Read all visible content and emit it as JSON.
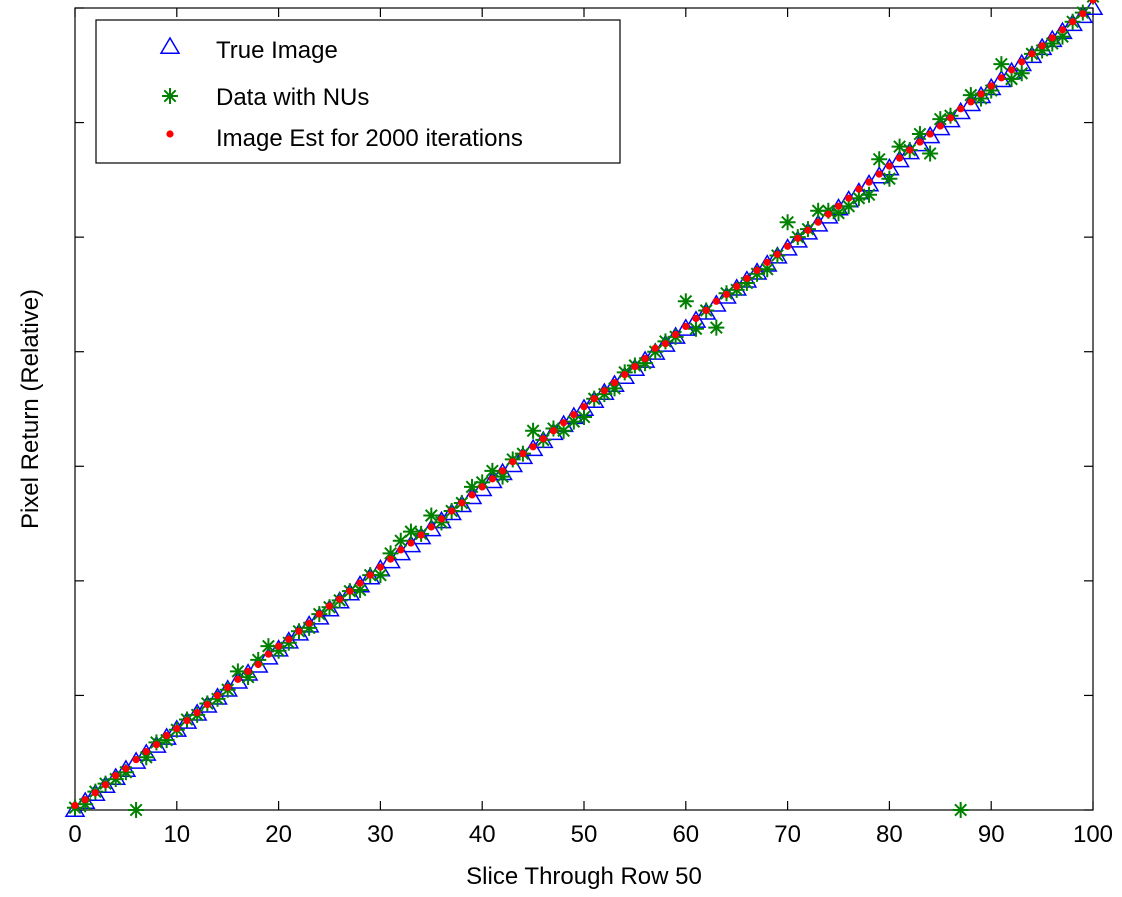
{
  "chart_data": {
    "type": "scatter",
    "xlabel": "Slice Through Row 50",
    "ylabel": "Pixel Return (Relative)",
    "xlim": [
      0,
      100
    ],
    "ylim": [
      0,
      7
    ],
    "xticks": [
      0,
      10,
      20,
      30,
      40,
      50,
      60,
      70,
      80,
      90,
      100
    ],
    "xtick_labels": [
      "0",
      "10",
      "20",
      "30",
      "40",
      "50",
      "60",
      "70",
      "80",
      "90",
      "100"
    ],
    "yticks": [
      0,
      1,
      2,
      3,
      4,
      5,
      6,
      7
    ],
    "ytick_labels": [
      "",
      "",
      "",
      "",
      "",
      "",
      "",
      ""
    ],
    "grid": false,
    "legend_position": "top-left",
    "series": [
      {
        "name": "True Image",
        "marker": "triangle",
        "color": "#0000ff",
        "x": [
          0,
          1,
          2,
          3,
          4,
          5,
          6,
          7,
          8,
          9,
          10,
          11,
          12,
          13,
          14,
          15,
          16,
          17,
          18,
          19,
          20,
          21,
          22,
          23,
          24,
          25,
          26,
          27,
          28,
          29,
          30,
          31,
          32,
          33,
          34,
          35,
          36,
          37,
          38,
          39,
          40,
          41,
          42,
          43,
          44,
          45,
          46,
          47,
          48,
          49,
          50,
          51,
          52,
          53,
          54,
          55,
          56,
          57,
          58,
          59,
          60,
          61,
          62,
          63,
          64,
          65,
          66,
          67,
          68,
          69,
          70,
          71,
          72,
          73,
          74,
          75,
          76,
          77,
          78,
          79,
          80,
          81,
          82,
          83,
          84,
          85,
          86,
          87,
          88,
          89,
          90,
          91,
          92,
          93,
          94,
          95,
          96,
          97,
          98,
          99,
          100
        ],
        "y": [
          0.0,
          0.07,
          0.14,
          0.21,
          0.28,
          0.35,
          0.42,
          0.49,
          0.56,
          0.63,
          0.7,
          0.77,
          0.84,
          0.91,
          0.98,
          1.05,
          1.12,
          1.19,
          1.26,
          1.33,
          1.4,
          1.47,
          1.54,
          1.61,
          1.68,
          1.75,
          1.82,
          1.89,
          1.96,
          2.03,
          2.1,
          2.17,
          2.24,
          2.31,
          2.38,
          2.45,
          2.52,
          2.59,
          2.66,
          2.73,
          2.8,
          2.87,
          2.94,
          3.01,
          3.08,
          3.15,
          3.22,
          3.29,
          3.36,
          3.43,
          3.5,
          3.57,
          3.64,
          3.71,
          3.78,
          3.85,
          3.92,
          3.99,
          4.06,
          4.13,
          4.2,
          4.27,
          4.34,
          4.41,
          4.48,
          4.55,
          4.62,
          4.69,
          4.76,
          4.83,
          4.9,
          4.97,
          5.04,
          5.11,
          5.18,
          5.25,
          5.32,
          5.39,
          5.46,
          5.53,
          5.6,
          5.67,
          5.74,
          5.81,
          5.88,
          5.95,
          6.02,
          6.09,
          6.16,
          6.23,
          6.3,
          6.37,
          6.44,
          6.51,
          6.58,
          6.65,
          6.72,
          6.79,
          6.86,
          6.93,
          7.0
        ]
      },
      {
        "name": "Data with NUs",
        "marker": "asterisk",
        "color": "#008000",
        "x": [
          0,
          1,
          2,
          3,
          4,
          5,
          6,
          7,
          8,
          9,
          10,
          11,
          12,
          13,
          14,
          15,
          16,
          17,
          18,
          19,
          20,
          21,
          22,
          23,
          24,
          25,
          26,
          27,
          28,
          29,
          30,
          31,
          32,
          33,
          34,
          35,
          36,
          37,
          38,
          39,
          40,
          41,
          42,
          43,
          44,
          45,
          46,
          47,
          48,
          49,
          50,
          51,
          52,
          53,
          54,
          55,
          56,
          57,
          58,
          59,
          60,
          61,
          62,
          63,
          64,
          65,
          66,
          67,
          68,
          69,
          70,
          71,
          72,
          73,
          74,
          75,
          76,
          77,
          78,
          79,
          80,
          81,
          82,
          83,
          84,
          85,
          86,
          87,
          88,
          89,
          90,
          91,
          92,
          93,
          94,
          95,
          96,
          97,
          98,
          99,
          100
        ],
        "y": [
          0.02,
          0.05,
          0.16,
          0.23,
          0.27,
          0.33,
          0.0,
          0.46,
          0.59,
          0.61,
          0.7,
          0.79,
          0.83,
          0.93,
          0.97,
          1.05,
          1.21,
          1.16,
          1.31,
          1.43,
          1.39,
          1.46,
          1.56,
          1.59,
          1.71,
          1.77,
          1.83,
          1.91,
          1.92,
          2.05,
          2.05,
          2.24,
          2.35,
          2.43,
          2.41,
          2.57,
          2.51,
          2.61,
          2.68,
          2.82,
          2.86,
          2.96,
          2.91,
          3.06,
          3.11,
          3.31,
          3.23,
          3.33,
          3.31,
          3.39,
          3.43,
          3.59,
          3.63,
          3.68,
          3.82,
          3.88,
          3.9,
          4.0,
          4.09,
          4.13,
          4.44,
          4.2,
          4.36,
          4.21,
          4.51,
          4.54,
          4.6,
          4.68,
          4.72,
          4.84,
          5.13,
          5.0,
          5.07,
          5.23,
          5.23,
          5.21,
          5.27,
          5.34,
          5.37,
          5.68,
          5.51,
          5.79,
          5.76,
          5.9,
          5.73,
          6.03,
          6.06,
          0.0,
          6.24,
          6.21,
          6.28,
          6.51,
          6.38,
          6.43,
          6.6,
          6.63,
          6.69,
          6.75,
          6.88,
          6.96,
          7.1
        ]
      },
      {
        "name": "Image Est for 2000 iterations",
        "marker": "dot",
        "color": "#ff0000",
        "x": [
          0,
          1,
          2,
          3,
          4,
          5,
          6,
          7,
          8,
          9,
          10,
          11,
          12,
          13,
          14,
          15,
          16,
          17,
          18,
          19,
          20,
          21,
          22,
          23,
          24,
          25,
          26,
          27,
          28,
          29,
          30,
          31,
          32,
          33,
          34,
          35,
          36,
          37,
          38,
          39,
          40,
          41,
          42,
          43,
          44,
          45,
          46,
          47,
          48,
          49,
          50,
          51,
          52,
          53,
          54,
          55,
          56,
          57,
          58,
          59,
          60,
          61,
          62,
          63,
          64,
          65,
          66,
          67,
          68,
          69,
          70,
          71,
          72,
          73,
          74,
          75,
          76,
          77,
          78,
          79,
          80,
          81,
          82,
          83,
          84,
          85,
          86,
          87,
          88,
          89,
          90,
          91,
          92,
          93,
          94,
          95,
          96,
          97,
          98,
          99,
          100
        ],
        "y": [
          0.04,
          0.09,
          0.15,
          0.22,
          0.3,
          0.36,
          0.44,
          0.51,
          0.57,
          0.65,
          0.71,
          0.78,
          0.85,
          0.92,
          1.0,
          1.07,
          1.14,
          1.21,
          1.27,
          1.36,
          1.43,
          1.49,
          1.56,
          1.63,
          1.71,
          1.78,
          1.84,
          1.91,
          1.98,
          2.05,
          2.12,
          2.19,
          2.27,
          2.33,
          2.4,
          2.47,
          2.54,
          2.61,
          2.68,
          2.75,
          2.82,
          2.89,
          2.96,
          3.04,
          3.11,
          3.17,
          3.24,
          3.31,
          3.38,
          3.45,
          3.52,
          3.59,
          3.66,
          3.73,
          3.8,
          3.87,
          3.94,
          4.03,
          4.07,
          4.15,
          4.22,
          4.29,
          4.36,
          4.44,
          4.5,
          4.57,
          4.64,
          4.71,
          4.78,
          4.85,
          4.92,
          4.99,
          5.06,
          5.13,
          5.2,
          5.27,
          5.34,
          5.42,
          5.48,
          5.55,
          5.62,
          5.69,
          5.76,
          5.83,
          5.9,
          5.97,
          6.04,
          6.12,
          6.18,
          6.25,
          6.32,
          6.39,
          6.46,
          6.53,
          6.6,
          6.67,
          6.74,
          6.81,
          6.88,
          6.95,
          7.07
        ]
      }
    ]
  }
}
